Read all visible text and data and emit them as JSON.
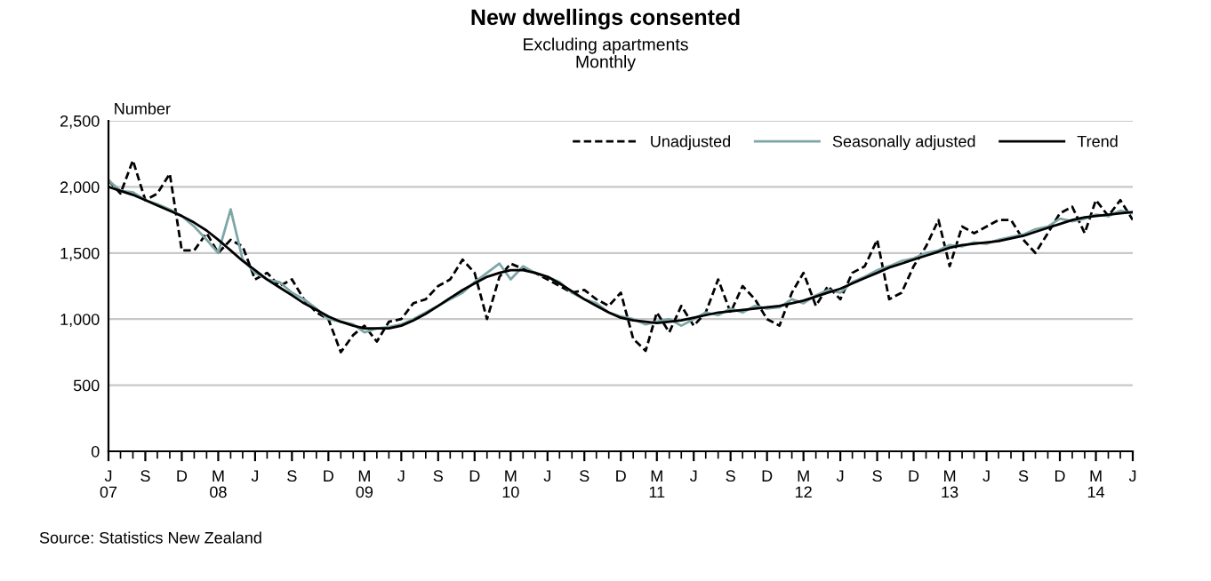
{
  "chart_data": {
    "type": "line",
    "title": "New dwellings consented",
    "subtitle": "Excluding apartments\nMonthly",
    "ylabel": "Number",
    "x": [
      "2007-06",
      "2007-07",
      "2007-08",
      "2007-09",
      "2007-10",
      "2007-11",
      "2007-12",
      "2008-01",
      "2008-02",
      "2008-03",
      "2008-04",
      "2008-05",
      "2008-06",
      "2008-07",
      "2008-08",
      "2008-09",
      "2008-10",
      "2008-11",
      "2008-12",
      "2009-01",
      "2009-02",
      "2009-03",
      "2009-04",
      "2009-05",
      "2009-06",
      "2009-07",
      "2009-08",
      "2009-09",
      "2009-10",
      "2009-11",
      "2009-12",
      "2010-01",
      "2010-02",
      "2010-03",
      "2010-04",
      "2010-05",
      "2010-06",
      "2010-07",
      "2010-08",
      "2010-09",
      "2010-10",
      "2010-11",
      "2010-12",
      "2011-01",
      "2011-02",
      "2011-03",
      "2011-04",
      "2011-05",
      "2011-06",
      "2011-07",
      "2011-08",
      "2011-09",
      "2011-10",
      "2011-11",
      "2011-12",
      "2012-01",
      "2012-02",
      "2012-03",
      "2012-04",
      "2012-05",
      "2012-06",
      "2012-07",
      "2012-08",
      "2012-09",
      "2012-10",
      "2012-11",
      "2012-12",
      "2013-01",
      "2013-02",
      "2013-03",
      "2013-04",
      "2013-05",
      "2013-06",
      "2013-07",
      "2013-08",
      "2013-09",
      "2013-10",
      "2013-11",
      "2013-12",
      "2014-01",
      "2014-02",
      "2014-03",
      "2014-04",
      "2014-05",
      "2014-06"
    ],
    "series": [
      {
        "name": "Unadjusted",
        "color": "#000000",
        "line_style": "dashed",
        "values": [
          2050,
          1950,
          2200,
          1900,
          1950,
          2100,
          1520,
          1520,
          1650,
          1500,
          1600,
          1550,
          1300,
          1350,
          1250,
          1300,
          1150,
          1050,
          1000,
          750,
          880,
          950,
          830,
          980,
          1000,
          1120,
          1150,
          1250,
          1300,
          1450,
          1350,
          1000,
          1320,
          1420,
          1380,
          1350,
          1300,
          1250,
          1200,
          1220,
          1150,
          1100,
          1200,
          850,
          760,
          1050,
          900,
          1100,
          950,
          1050,
          1300,
          1050,
          1250,
          1150,
          1000,
          950,
          1200,
          1350,
          1100,
          1250,
          1150,
          1350,
          1400,
          1600,
          1150,
          1200,
          1400,
          1550,
          1750,
          1400,
          1700,
          1650,
          1700,
          1750,
          1750,
          1600,
          1500,
          1650,
          1800,
          1850,
          1650,
          1900,
          1780,
          1900,
          1750
        ]
      },
      {
        "name": "Seasonally adjusted",
        "color": "#7fa6a6",
        "line_style": "solid",
        "values": [
          2050,
          1970,
          1960,
          1900,
          1870,
          1830,
          1780,
          1700,
          1600,
          1500,
          1830,
          1450,
          1350,
          1300,
          1280,
          1200,
          1150,
          1080,
          1000,
          980,
          960,
          900,
          930,
          940,
          960,
          1000,
          1050,
          1100,
          1150,
          1200,
          1280,
          1350,
          1420,
          1300,
          1400,
          1350,
          1320,
          1280,
          1200,
          1150,
          1120,
          1050,
          1020,
          1000,
          960,
          980,
          1000,
          950,
          1000,
          1050,
          1030,
          1080,
          1050,
          1100,
          1080,
          1090,
          1150,
          1120,
          1180,
          1220,
          1200,
          1280,
          1320,
          1370,
          1400,
          1440,
          1460,
          1500,
          1520,
          1560,
          1550,
          1580,
          1570,
          1600,
          1620,
          1640,
          1680,
          1700,
          1760,
          1740,
          1760,
          1790,
          1780,
          1820,
          1800
        ]
      },
      {
        "name": "Trend",
        "color": "#000000",
        "line_style": "solid",
        "values": [
          2000,
          1970,
          1940,
          1900,
          1860,
          1820,
          1780,
          1730,
          1670,
          1600,
          1520,
          1440,
          1370,
          1300,
          1240,
          1180,
          1120,
          1070,
          1020,
          980,
          950,
          930,
          930,
          930,
          950,
          990,
          1040,
          1100,
          1160,
          1220,
          1270,
          1320,
          1350,
          1370,
          1370,
          1350,
          1320,
          1270,
          1210,
          1150,
          1100,
          1050,
          1010,
          990,
          980,
          970,
          980,
          990,
          1010,
          1030,
          1050,
          1060,
          1070,
          1080,
          1090,
          1100,
          1120,
          1140,
          1170,
          1200,
          1230,
          1270,
          1310,
          1350,
          1390,
          1420,
          1450,
          1480,
          1510,
          1540,
          1560,
          1570,
          1580,
          1590,
          1610,
          1630,
          1660,
          1690,
          1720,
          1750,
          1770,
          1780,
          1790,
          1800,
          1810
        ]
      }
    ],
    "xticks": [
      {
        "value": "2007-06",
        "label": "J\n07"
      },
      {
        "value": "2007-09",
        "label": "S"
      },
      {
        "value": "2007-12",
        "label": "D"
      },
      {
        "value": "2008-03",
        "label": "M\n08"
      },
      {
        "value": "2008-06",
        "label": "J"
      },
      {
        "value": "2008-09",
        "label": "S"
      },
      {
        "value": "2008-12",
        "label": "D"
      },
      {
        "value": "2009-03",
        "label": "M\n09"
      },
      {
        "value": "2009-06",
        "label": "J"
      },
      {
        "value": "2009-09",
        "label": "S"
      },
      {
        "value": "2009-12",
        "label": "D"
      },
      {
        "value": "2010-03",
        "label": "M\n10"
      },
      {
        "value": "2010-06",
        "label": "J"
      },
      {
        "value": "2010-09",
        "label": "S"
      },
      {
        "value": "2010-12",
        "label": "D"
      },
      {
        "value": "2011-03",
        "label": "M\n11"
      },
      {
        "value": "2011-06",
        "label": "J"
      },
      {
        "value": "2011-09",
        "label": "S"
      },
      {
        "value": "2011-12",
        "label": "D"
      },
      {
        "value": "2012-03",
        "label": "M\n12"
      },
      {
        "value": "2012-06",
        "label": "J"
      },
      {
        "value": "2012-09",
        "label": "S"
      },
      {
        "value": "2012-12",
        "label": "D"
      },
      {
        "value": "2013-03",
        "label": "M\n13"
      },
      {
        "value": "2013-06",
        "label": "J"
      },
      {
        "value": "2013-09",
        "label": "S"
      },
      {
        "value": "2013-12",
        "label": "D"
      },
      {
        "value": "2014-03",
        "label": "M\n14"
      },
      {
        "value": "2014-06",
        "label": "J"
      }
    ],
    "xlim": [
      "2007-06",
      "2014-06"
    ],
    "ylim": [
      0,
      2500
    ],
    "yticks": [
      {
        "value": 0,
        "label": "0"
      },
      {
        "value": 500,
        "label": "500"
      },
      {
        "value": 1000,
        "label": "1,000"
      },
      {
        "value": 1500,
        "label": "1,500"
      },
      {
        "value": 2000,
        "label": "2,000"
      },
      {
        "value": 2500,
        "label": "2,500"
      }
    ],
    "grid": "y",
    "legend": "top right",
    "marker": "none",
    "annotations": [
      "Source: Statistics New Zealand"
    ]
  }
}
